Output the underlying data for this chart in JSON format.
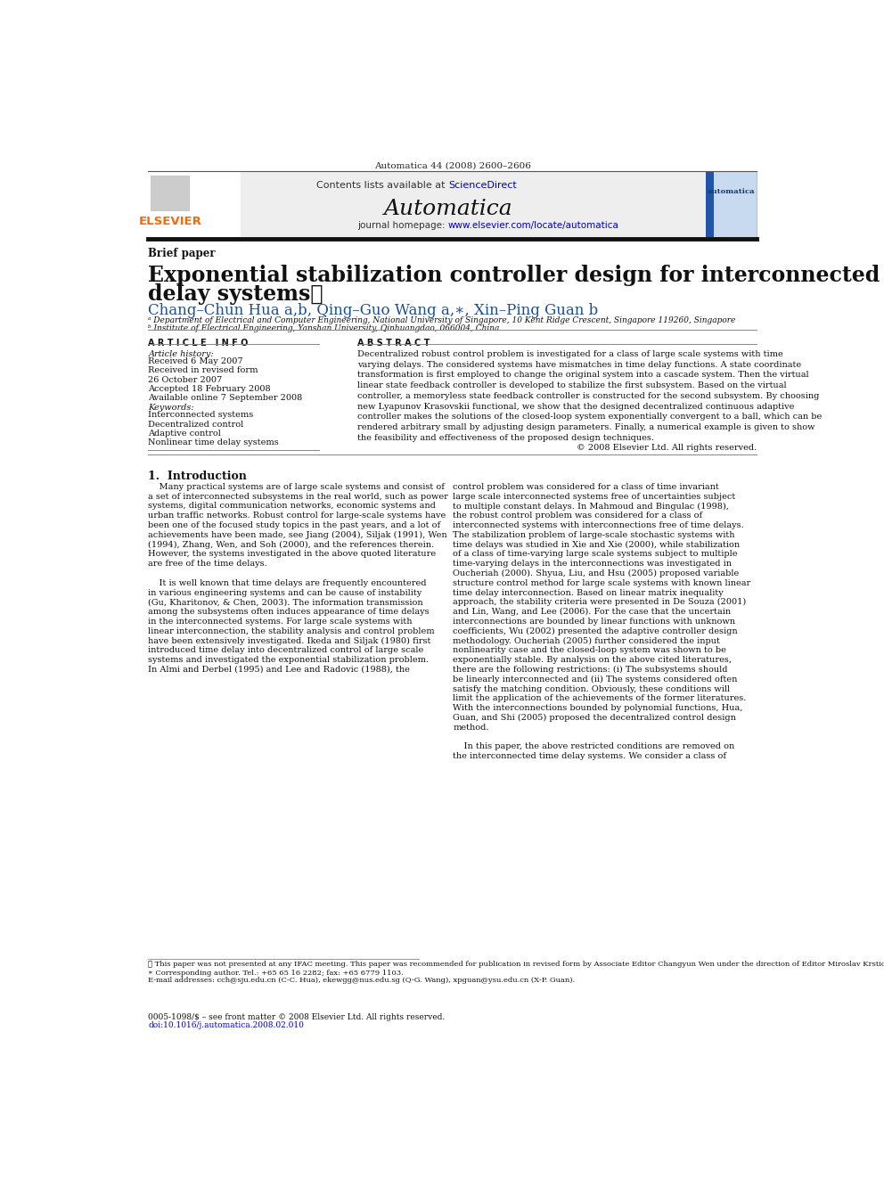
{
  "page_width": 9.92,
  "page_height": 13.23,
  "dpi": 100,
  "background_color": "#ffffff",
  "top_citation": "Automatica 44 (2008) 2600–2606",
  "header_bg": "#eeeeee",
  "header_contents_text": "Contents lists available at ",
  "header_sciencedirect": "ScienceDirect",
  "header_journal": "Automatica",
  "header_homepage_text": "journal homepage: ",
  "header_homepage_url": "www.elsevier.com/locate/automatica",
  "section_label": "Brief paper",
  "paper_title_line1": "Exponential stabilization controller design for interconnected time",
  "paper_title_line2": "delay systems⋆",
  "authors_line": "Chang–Chun Hua a,b, Qing–Guo Wang a,∗, Xin–Ping Guan b",
  "affil_a": "ᵃ Department of Electrical and Computer Engineering, National University of Singapore, 10 Kent Ridge Crescent, Singapore 119260, Singapore",
  "affil_b": "ᵇ Institute of Electrical Engineering, Yanshan University, Qinhuangdao, 066004, China",
  "article_info_header": "ARTICLE  INFO",
  "abstract_header": "ABSTRACT",
  "article_history_label": "Article history:",
  "article_history": "Received 6 May 2007\nReceived in revised form\n26 October 2007\nAccepted 18 February 2008\nAvailable online 7 September 2008",
  "keywords_label": "Keywords:",
  "keywords": "Interconnected systems\nDecentralized control\nAdaptive control\nNonlinear time delay systems",
  "footnote_star": "⋆ This paper was not presented at any IFAC meeting. This paper was recommended for publication in revised form by Associate Editor Changyun Wen under the direction of Editor Miroslav Krstic.",
  "footnote_corr": "∗ Corresponding author. Tel.: +65 65 16 2282; fax: +65 6779 1103.",
  "footnote_email": "E-mail addresses: cch@sju.edu.cn (C-C. Hua), ekewgg@nus.edu.sg (Q-G. Wang), xpguan@ysu.edu.cn (X-P. Guan).",
  "issn_text": "0005-1098/$ – see front matter © 2008 Elsevier Ltd. All rights reserved.",
  "doi_text": "doi:10.1016/j.automatica.2008.02.010",
  "link_color": "#0000cc",
  "author_color": "#1a4f99",
  "elsevier_orange": "#ff6600"
}
